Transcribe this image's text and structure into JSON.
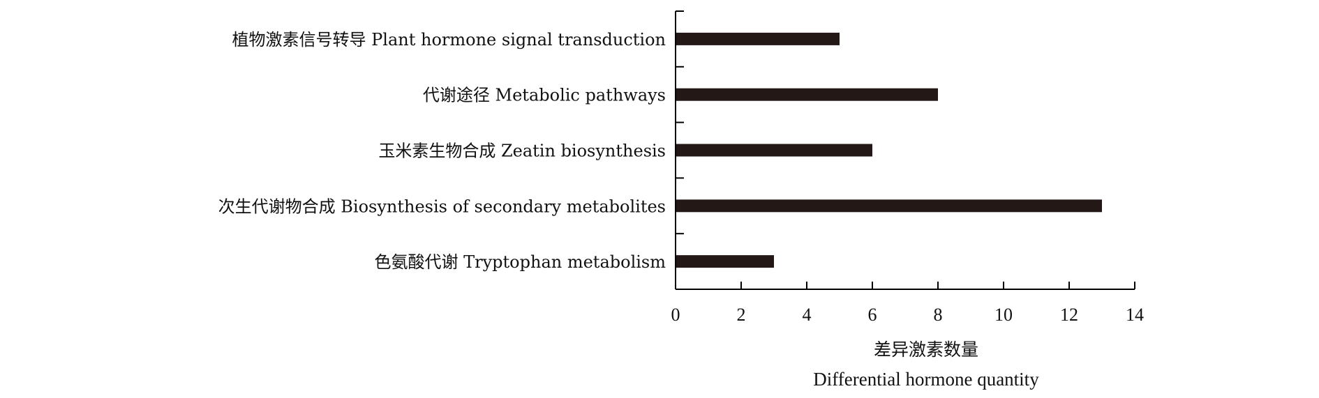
{
  "chart_data": {
    "type": "bar",
    "orientation": "horizontal",
    "categories": [
      "植物激素信号转导 Plant hormone signal transduction",
      "代谢途径 Metabolic pathways",
      "玉米素生物合成 Zeatin biosynthesis",
      "次生代谢物合成 Biosynthesis of secondary metabolites",
      "色氨酸代谢 Tryptophan metabolism"
    ],
    "values": [
      5,
      8,
      6,
      13,
      3
    ],
    "xlabel": "差异激素数量",
    "xlabel_en": "Differential hormone quantity",
    "ylabel": "",
    "title": "",
    "xlim": [
      0,
      14
    ],
    "xticks": [
      "0",
      "2",
      "4",
      "6",
      "8",
      "10",
      "12",
      "14"
    ],
    "grid": false,
    "legend": "none",
    "bar_color": "#231815"
  }
}
